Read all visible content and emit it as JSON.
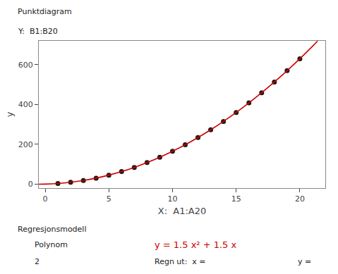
{
  "chart_data": {
    "type": "scatter",
    "xlabel": "X:  A1:A20",
    "ylabel": "y",
    "annotations": [
      {
        "text": "Punktdiagram"
      },
      {
        "text": "Y:  B1:B20"
      },
      {
        "text": "Regresjonsmodell"
      },
      {
        "text": "Polynom"
      },
      {
        "text": "2"
      },
      {
        "text": "y = 1.5 x² + 1.5 x",
        "color": "#cc0000"
      },
      {
        "text": "Regn ut:  x ="
      },
      {
        "text": "y ="
      }
    ],
    "series": [
      {
        "type": "scatter",
        "marker": "circle",
        "color": "#1a1a1a",
        "x": [
          1,
          2,
          3,
          4,
          5,
          6,
          7,
          8,
          9,
          10,
          11,
          12,
          13,
          14,
          15,
          16,
          17,
          18,
          19,
          20
        ],
        "values": [
          3,
          9,
          18,
          30,
          45,
          63,
          84,
          108,
          135,
          165,
          198,
          234,
          273,
          315,
          360,
          408,
          459,
          513,
          570,
          630
        ]
      },
      {
        "type": "line",
        "color": "#cc0000",
        "x": [
          -0.5,
          0,
          1,
          2,
          3,
          4,
          5,
          6,
          7,
          8,
          9,
          10,
          11,
          12,
          13,
          14,
          15,
          16,
          17,
          18,
          19,
          20,
          21,
          21.4
        ],
        "values": [
          -0.375,
          0,
          3,
          9,
          18,
          30,
          45,
          63,
          84,
          108,
          135,
          165,
          198,
          234,
          273,
          315,
          360,
          408,
          459,
          513,
          570,
          630,
          693,
          719.04
        ]
      }
    ],
    "xlim": [
      -0.5,
      22
    ],
    "xticks": [
      0,
      5,
      10,
      15,
      20
    ],
    "ylim": [
      -20,
      720
    ],
    "yticks": [
      0,
      200,
      400,
      600
    ],
    "grid": false
  }
}
